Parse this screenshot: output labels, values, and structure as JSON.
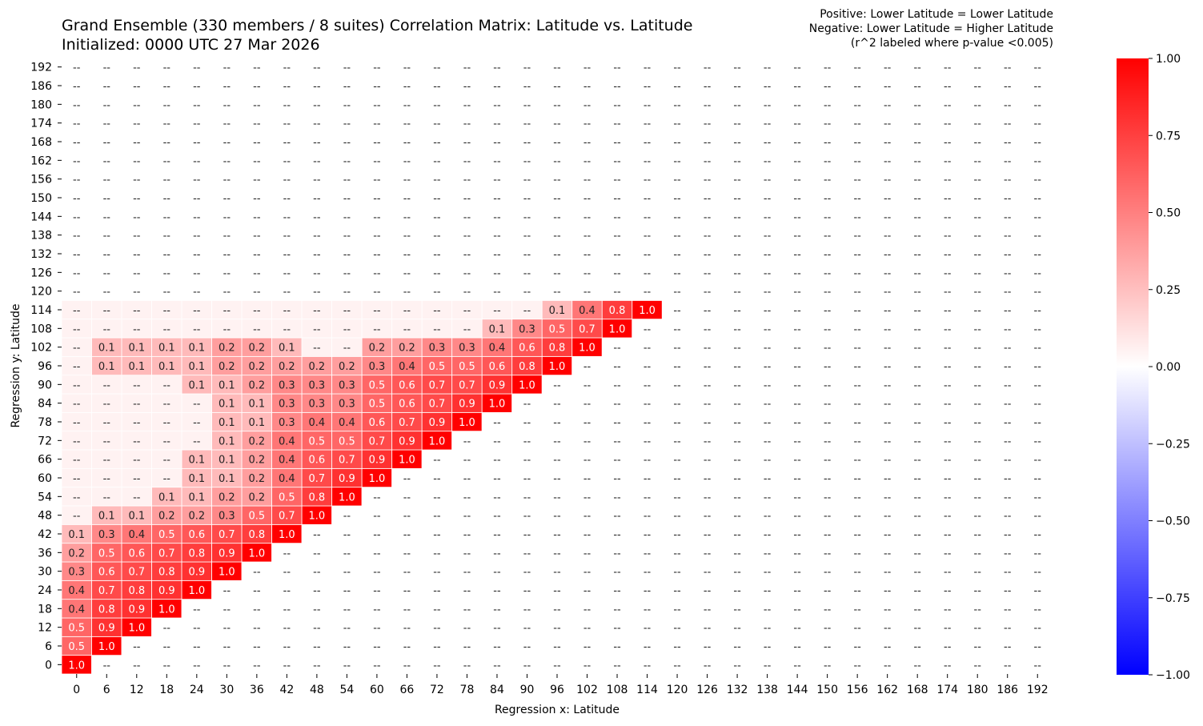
{
  "chart_data": {
    "type": "heatmap",
    "title_line1": "Grand Ensemble (330 members / 8 suites) Correlation Matrix: Latitude vs. Latitude",
    "title_line2": "Initialized: 0000 UTC 27 Mar 2026",
    "notes": [
      "Positive: Lower Latitude = Lower Latitude",
      "Negative: Lower Latitude = Higher Latitude",
      "(r^2 labeled where p-value <0.005)"
    ],
    "xlabel": "Regression x: Latitude",
    "ylabel": "Regression y: Latitude",
    "x_ticks": [
      "0",
      "6",
      "12",
      "18",
      "24",
      "30",
      "36",
      "42",
      "48",
      "54",
      "60",
      "66",
      "72",
      "78",
      "84",
      "90",
      "96",
      "102",
      "108",
      "114",
      "120",
      "126",
      "132",
      "138",
      "144",
      "150",
      "156",
      "162",
      "168",
      "174",
      "180",
      "186",
      "192"
    ],
    "y_ticks": [
      "0",
      "6",
      "12",
      "18",
      "24",
      "30",
      "36",
      "42",
      "48",
      "54",
      "60",
      "66",
      "72",
      "78",
      "84",
      "90",
      "96",
      "102",
      "108",
      "114",
      "120",
      "126",
      "132",
      "138",
      "144",
      "150",
      "156",
      "162",
      "168",
      "174",
      "180",
      "186",
      "192"
    ],
    "missing_label": "--",
    "rows_by_y_index_from_0": [
      [
        1.0
      ],
      [
        0.5,
        1.0
      ],
      [
        0.5,
        0.9,
        1.0
      ],
      [
        0.4,
        0.8,
        0.9,
        1.0
      ],
      [
        0.4,
        0.7,
        0.8,
        0.9,
        1.0
      ],
      [
        0.3,
        0.6,
        0.7,
        0.8,
        0.9,
        1.0
      ],
      [
        0.2,
        0.5,
        0.6,
        0.7,
        0.8,
        0.9,
        1.0
      ],
      [
        0.1,
        0.3,
        0.4,
        0.5,
        0.6,
        0.7,
        0.8,
        1.0
      ],
      [
        null,
        0.1,
        0.1,
        0.2,
        0.2,
        0.3,
        0.5,
        0.7,
        1.0
      ],
      [
        null,
        null,
        null,
        0.1,
        0.1,
        0.2,
        0.2,
        0.5,
        0.8,
        1.0
      ],
      [
        null,
        null,
        null,
        null,
        0.1,
        0.1,
        0.2,
        0.4,
        0.7,
        0.9,
        1.0
      ],
      [
        null,
        null,
        null,
        null,
        0.1,
        0.1,
        0.2,
        0.4,
        0.6,
        0.7,
        0.9,
        1.0
      ],
      [
        null,
        null,
        null,
        null,
        null,
        0.1,
        0.2,
        0.4,
        0.5,
        0.5,
        0.7,
        0.9,
        1.0
      ],
      [
        null,
        null,
        null,
        null,
        null,
        0.1,
        0.1,
        0.3,
        0.4,
        0.4,
        0.6,
        0.7,
        0.9,
        1.0
      ],
      [
        null,
        null,
        null,
        null,
        null,
        0.1,
        0.1,
        0.3,
        0.3,
        0.3,
        0.5,
        0.6,
        0.7,
        0.9,
        1.0
      ],
      [
        null,
        null,
        null,
        null,
        0.1,
        0.1,
        0.2,
        0.3,
        0.3,
        0.3,
        0.5,
        0.6,
        0.7,
        0.7,
        0.9,
        1.0
      ],
      [
        null,
        0.1,
        0.1,
        0.1,
        0.1,
        0.2,
        0.2,
        0.2,
        0.2,
        0.2,
        0.3,
        0.4,
        0.5,
        0.5,
        0.6,
        0.8,
        1.0
      ],
      [
        null,
        0.1,
        0.1,
        0.1,
        0.1,
        0.2,
        0.2,
        0.1,
        null,
        null,
        0.2,
        0.2,
        0.3,
        0.3,
        0.4,
        0.6,
        0.8,
        1.0
      ],
      [
        null,
        null,
        null,
        null,
        null,
        null,
        null,
        null,
        null,
        null,
        null,
        null,
        null,
        null,
        0.1,
        0.3,
        0.5,
        0.7,
        1.0
      ],
      [
        null,
        null,
        null,
        null,
        null,
        null,
        null,
        null,
        null,
        null,
        null,
        null,
        null,
        null,
        null,
        null,
        0.1,
        0.4,
        0.8,
        1.0
      ]
    ],
    "colorbar": {
      "range": [
        -1,
        1
      ],
      "ticks": [
        "1.00",
        "0.75",
        "0.50",
        "0.25",
        "0.00",
        "−0.25",
        "−0.50",
        "−0.75",
        "−1.00"
      ],
      "colors": {
        "pos": "#ff0000",
        "zero": "#ffffff",
        "neg": "#0000ff"
      }
    }
  }
}
